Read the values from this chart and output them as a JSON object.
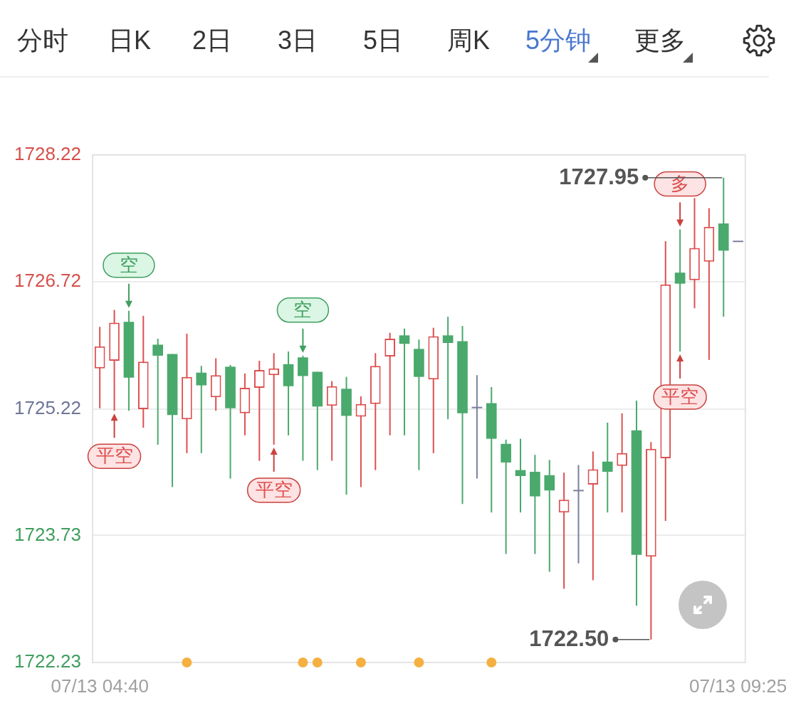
{
  "chart_data": {
    "type": "candlestick",
    "categories": [
      "07/13 04:40",
      null,
      null,
      null,
      null,
      null,
      null,
      null,
      null,
      null,
      null,
      null,
      null,
      null,
      null,
      null,
      null,
      null,
      null,
      null,
      null,
      null,
      null,
      null,
      null,
      null,
      null,
      null,
      null,
      null,
      null,
      null,
      null,
      null,
      null,
      null,
      null,
      null,
      null,
      null,
      null,
      null,
      null,
      null,
      "07/13 09:25"
    ],
    "ohlc": [
      [
        1725.7,
        1726.19,
        1725.23,
        1725.96
      ],
      [
        1725.79,
        1726.39,
        1725.2,
        1726.24
      ],
      [
        1726.25,
        1726.38,
        1725.2,
        1725.59
      ],
      [
        1725.22,
        1726.32,
        1725.0,
        1725.78
      ],
      [
        1725.98,
        1726.05,
        1724.8,
        1725.85
      ],
      [
        1725.87,
        1725.87,
        1724.3,
        1725.15
      ],
      [
        1725.1,
        1726.11,
        1724.7,
        1725.6
      ],
      [
        1725.65,
        1725.73,
        1724.7,
        1725.5
      ],
      [
        1725.36,
        1725.82,
        1725.2,
        1725.62
      ],
      [
        1725.72,
        1725.74,
        1724.4,
        1725.23
      ],
      [
        1725.17,
        1725.64,
        1724.91,
        1725.47
      ],
      [
        1725.47,
        1725.79,
        1724.61,
        1725.68
      ],
      [
        1725.62,
        1725.88,
        1724.8,
        1725.7
      ],
      [
        1725.75,
        1725.9,
        1724.91,
        1725.49
      ],
      [
        1725.83,
        1725.85,
        1724.61,
        1725.61
      ],
      [
        1725.66,
        1725.66,
        1724.5,
        1725.25
      ],
      [
        1725.26,
        1725.55,
        1724.61,
        1725.49
      ],
      [
        1725.46,
        1725.6,
        1724.21,
        1725.14
      ],
      [
        1725.13,
        1725.37,
        1724.3,
        1725.28
      ],
      [
        1725.28,
        1725.88,
        1724.5,
        1725.73
      ],
      [
        1725.84,
        1726.12,
        1724.91,
        1726.05
      ],
      [
        1726.09,
        1726.17,
        1724.91,
        1725.99
      ],
      [
        1725.93,
        1726.04,
        1724.5,
        1725.6
      ],
      [
        1725.57,
        1726.18,
        1724.7,
        1726.08
      ],
      [
        1726.09,
        1726.31,
        1725.1,
        1726.0
      ],
      [
        1726.02,
        1726.2,
        1724.1,
        1725.17
      ],
      [
        1725.23,
        1725.62,
        1724.4,
        1725.23
      ],
      [
        1725.29,
        1725.48,
        1724.0,
        1724.87
      ],
      [
        1724.81,
        1724.86,
        1723.51,
        1724.59
      ],
      [
        1724.5,
        1724.87,
        1724.0,
        1724.43
      ],
      [
        1724.48,
        1724.68,
        1723.51,
        1724.19
      ],
      [
        1724.44,
        1724.62,
        1723.3,
        1724.26
      ],
      [
        1724.0,
        1724.47,
        1723.1,
        1724.15
      ],
      [
        1724.25,
        1724.56,
        1723.4,
        1724.25
      ],
      [
        1724.33,
        1724.72,
        1723.2,
        1724.51
      ],
      [
        1724.6,
        1725.06,
        1724.0,
        1724.48
      ],
      [
        1724.55,
        1725.17,
        1724.0,
        1724.7
      ],
      [
        1724.97,
        1725.32,
        1722.9,
        1723.5
      ],
      [
        1723.48,
        1724.83,
        1722.5,
        1724.75
      ],
      [
        1724.64,
        1727.2,
        1723.9,
        1726.69
      ],
      [
        1726.83,
        1727.34,
        1725.9,
        1726.7
      ],
      [
        1726.74,
        1727.71,
        1726.41,
        1727.12
      ],
      [
        1726.96,
        1727.59,
        1725.8,
        1727.37
      ],
      [
        1727.41,
        1727.95,
        1726.31,
        1727.09
      ],
      [
        1727.19,
        1727.19,
        1727.19,
        1727.19
      ]
    ],
    "colors": [
      "#dd5050",
      "#dd5050",
      "#4aa96c",
      "#dd5050",
      "#4aa96c",
      "#4aa96c",
      "#dd5050",
      "#4aa96c",
      "#dd5050",
      "#4aa96c",
      "#dd5050",
      "#dd5050",
      "#dd5050",
      "#4aa96c",
      "#4aa96c",
      "#4aa96c",
      "#dd5050",
      "#4aa96c",
      "#dd5050",
      "#dd5050",
      "#dd5050",
      "#4aa96c",
      "#4aa96c",
      "#dd5050",
      "#4aa96c",
      "#4aa96c",
      "#7a7f9c",
      "#4aa96c",
      "#4aa96c",
      "#4aa96c",
      "#4aa96c",
      "#4aa96c",
      "#dd5050",
      "#7a7f9c",
      "#dd5050",
      "#4aa96c",
      "#dd5050",
      "#4aa96c",
      "#dd5050",
      "#dd5050",
      "#4aa96c",
      "#dd5050",
      "#dd5050",
      "#4aa96c",
      "#7a7f9c"
    ],
    "series": [
      {
        "type": "scatter",
        "color": "#f5b041",
        "marker": "circle",
        "values": [
          null,
          null,
          null,
          null,
          null,
          null,
          1722.23,
          null,
          null,
          null,
          null,
          null,
          null,
          null,
          1722.23,
          1722.23,
          null,
          null,
          1722.23,
          null,
          null,
          null,
          1722.23,
          null,
          null,
          null,
          null,
          1722.23,
          null,
          null,
          null,
          null,
          null,
          null,
          null,
          null,
          null,
          null,
          null,
          null,
          null,
          null,
          null,
          null,
          null
        ]
      }
    ],
    "ylim": [
      1722.23,
      1728.22
    ],
    "yticks": [
      1722.23,
      1723.73,
      1725.22,
      1726.72,
      1728.22
    ],
    "grid": "y",
    "annotations": [
      "分时",
      "日K",
      "2日",
      "3日",
      "5日",
      "周K",
      "5分钟",
      "更多",
      "1727.95",
      "1722.50",
      {
        "text": "平空",
        "y": 1725.2
      },
      {
        "text": "空",
        "y": 1726.38
      },
      {
        "text": "平空",
        "y": 1724.8
      },
      {
        "text": "空",
        "y": 1725.85
      },
      {
        "text": "多",
        "y": 1727.34
      },
      {
        "text": "平空",
        "y": 1725.9
      }
    ]
  }
}
